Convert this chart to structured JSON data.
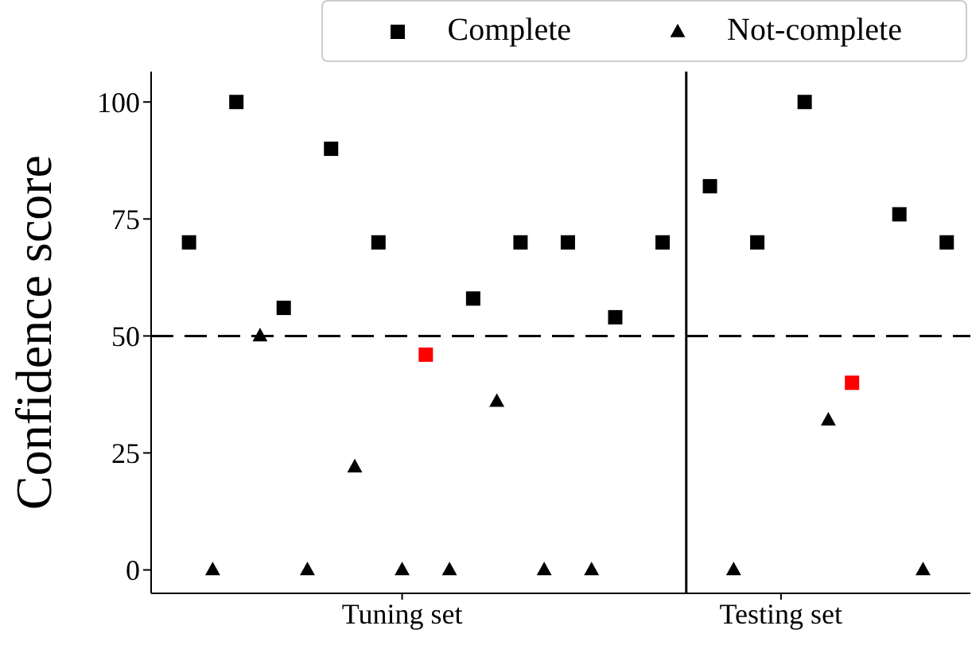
{
  "chart_data": {
    "type": "scatter",
    "ylabel": "Confidence score",
    "categories": [
      null,
      null,
      null,
      null,
      null,
      null,
      null,
      null,
      null,
      "Tuning set",
      null,
      null,
      null,
      null,
      null,
      null,
      null,
      null,
      null,
      null,
      null,
      null,
      null,
      null,
      null,
      "Testing set",
      null,
      null,
      null,
      null,
      null,
      null,
      null
    ],
    "ylim": [
      -5,
      106.5
    ],
    "yticks": [
      0,
      25,
      50,
      75,
      100
    ],
    "grid": false,
    "legend": "top right",
    "series": [
      {
        "name": "Complete",
        "color": "#000000",
        "marker": "square",
        "values": [
          70,
          null,
          100,
          null,
          56,
          null,
          90,
          null,
          70,
          null,
          46,
          null,
          58,
          null,
          70,
          null,
          70,
          null,
          54,
          null,
          70,
          null,
          82,
          null,
          70,
          null,
          100,
          null,
          40,
          null,
          76,
          null,
          70
        ],
        "colors": [
          "#000000",
          null,
          "#000000",
          null,
          "#000000",
          null,
          "#000000",
          null,
          "#000000",
          null,
          "#ff0000",
          null,
          "#000000",
          null,
          "#000000",
          null,
          "#000000",
          null,
          "#000000",
          null,
          "#000000",
          null,
          "#000000",
          null,
          "#000000",
          null,
          "#000000",
          null,
          "#ff0000",
          null,
          "#000000",
          null,
          "#000000"
        ]
      },
      {
        "name": "Not-complete",
        "color": "#000000",
        "marker": "triangle",
        "values": [
          null,
          0,
          null,
          50,
          null,
          0,
          null,
          22,
          null,
          0,
          null,
          0,
          null,
          36,
          null,
          0,
          null,
          0,
          null,
          null,
          null,
          null,
          null,
          0,
          null,
          null,
          null,
          32,
          null,
          null,
          null,
          0,
          null
        ]
      }
    ],
    "ref_lines": [
      {
        "axis": "y",
        "value": 50,
        "line_style": "dashed",
        "color": "#000000"
      }
    ]
  }
}
